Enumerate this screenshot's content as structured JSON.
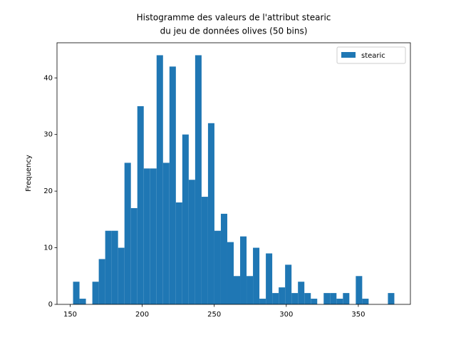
{
  "chart_data": {
    "type": "histogram",
    "title": [
      "Histogramme des valeurs de l'attribut stearic",
      "du jeu de données olives (50 bins)"
    ],
    "y_label": "Frequency",
    "bins": [
      152,
      156.46,
      160.92,
      165.38,
      169.84,
      174.3,
      178.76,
      183.22,
      187.68,
      192.14,
      196.6,
      201.06,
      205.52,
      209.98,
      214.44,
      218.9,
      223.36,
      227.82,
      232.28,
      236.74,
      241.2,
      245.66,
      250.12,
      254.58,
      259.04,
      263.5,
      267.96,
      272.42,
      276.88,
      281.34,
      285.8,
      290.26,
      294.72,
      299.18,
      303.64,
      308.1,
      312.56,
      317.02,
      321.48,
      325.94,
      330.4,
      334.86,
      339.32,
      343.78,
      348.24,
      352.7,
      357.16,
      361.62,
      366.08,
      370.54,
      375
    ],
    "series": [
      {
        "name": "stearic",
        "color": "#1f77b4",
        "values": [
          4,
          1,
          0,
          4,
          8,
          13,
          13,
          10,
          25,
          17,
          35,
          24,
          24,
          44,
          25,
          42,
          18,
          30,
          22,
          44,
          19,
          32,
          13,
          16,
          11,
          5,
          12,
          5,
          10,
          1,
          9,
          2,
          3,
          7,
          2,
          4,
          2,
          1,
          0,
          2,
          2,
          1,
          2,
          0,
          5,
          1,
          0,
          0,
          0,
          2
        ]
      }
    ],
    "xlim": [
      140.85,
      386.15
    ],
    "ylim": [
      0,
      46.2
    ],
    "xticks": [
      150,
      200,
      250,
      300,
      350
    ],
    "yticks": [
      0,
      10,
      20,
      30,
      40
    ],
    "legend": "upper right"
  }
}
